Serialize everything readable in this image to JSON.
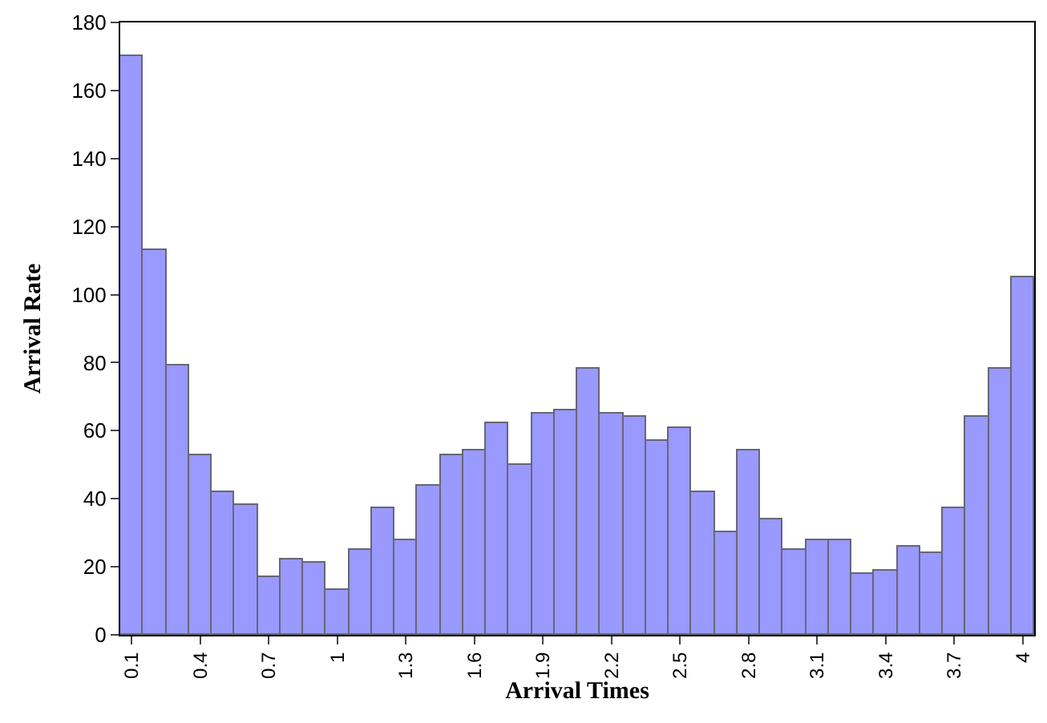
{
  "chart_data": {
    "type": "bar",
    "xlabel": "Arrival Times",
    "ylabel": "Arrival Rate",
    "categories": [
      "0.1",
      null,
      null,
      "0.4",
      null,
      null,
      "0.7",
      null,
      null,
      "1",
      null,
      null,
      "1.3",
      null,
      null,
      "1.6",
      null,
      null,
      "1.9",
      null,
      null,
      "2.2",
      null,
      null,
      "2.5",
      null,
      null,
      "2.8",
      null,
      null,
      "3.1",
      null,
      null,
      "3.4",
      null,
      null,
      "3.7",
      null,
      null,
      "4"
    ],
    "values": [
      170,
      113,
      79,
      53,
      42,
      38,
      17,
      22,
      21,
      13,
      25,
      37,
      28,
      44,
      53,
      54,
      62,
      50,
      65,
      66,
      78,
      65,
      64,
      57,
      61,
      42,
      30,
      54,
      34,
      25,
      28,
      28,
      18,
      19,
      26,
      24,
      37,
      64,
      78,
      105
    ],
    "color": "#9999ff",
    "ylim": [
      0,
      180
    ],
    "yticks": [
      0,
      20,
      40,
      60,
      80,
      100,
      120,
      140,
      160,
      180
    ]
  }
}
